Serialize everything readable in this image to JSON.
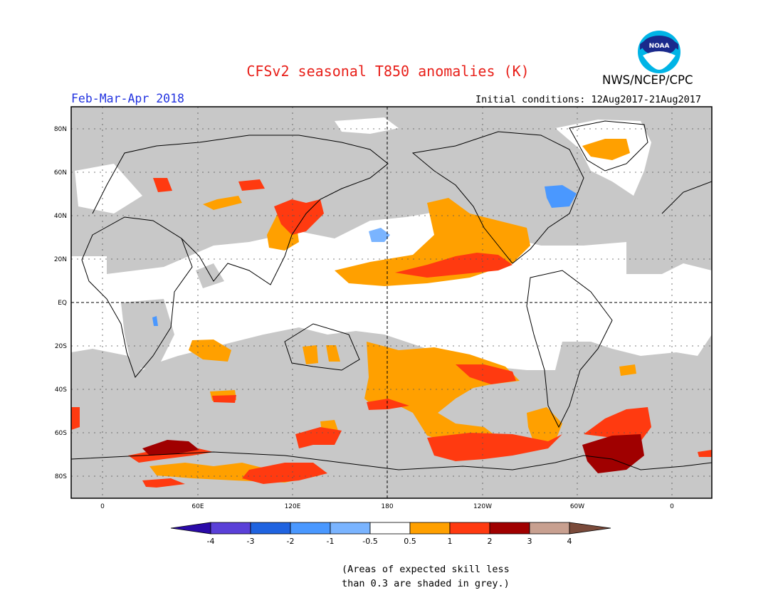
{
  "header": {
    "title": "CFSv2 seasonal T850 anomalies (K)",
    "agency": "NWS/NCEP/CPC",
    "season": "Feb-Mar-Apr 2018",
    "initial_conditions": "Initial conditions: 12Aug2017-21Aug2017",
    "logo_text": "NOAA"
  },
  "map": {
    "lat_labels": [
      "80N",
      "60N",
      "40N",
      "20N",
      "EQ",
      "20S",
      "40S",
      "60S",
      "80S"
    ],
    "lon_labels": [
      "0",
      "60E",
      "120E",
      "180",
      "120W",
      "60W",
      "0"
    ],
    "colors": {
      "grey": "#c8c8c8",
      "pos_05_1": "#ffa000",
      "pos_1_2": "#ff3a10",
      "pos_2_3": "#a00000",
      "neg_05_1": "#7ab4ff",
      "neg_1_2": "#4a98ff",
      "coast": "#000000"
    }
  },
  "colorbar": {
    "labels": [
      "-4",
      "-3",
      "-2",
      "-1",
      "-0.5",
      "0.5",
      "1",
      "2",
      "3",
      "4"
    ],
    "colors": [
      "#2a0aa8",
      "#5a40d8",
      "#1f63e0",
      "#4a98ff",
      "#7ab4ff",
      "#ffffff",
      "#ffa000",
      "#ff3a10",
      "#e01010",
      "#a00000",
      "#c8a090",
      "#7a4a3a"
    ]
  },
  "note": {
    "line1": "(Areas of expected skill less",
    "line2": "than 0.3 are shaded in grey.)"
  }
}
